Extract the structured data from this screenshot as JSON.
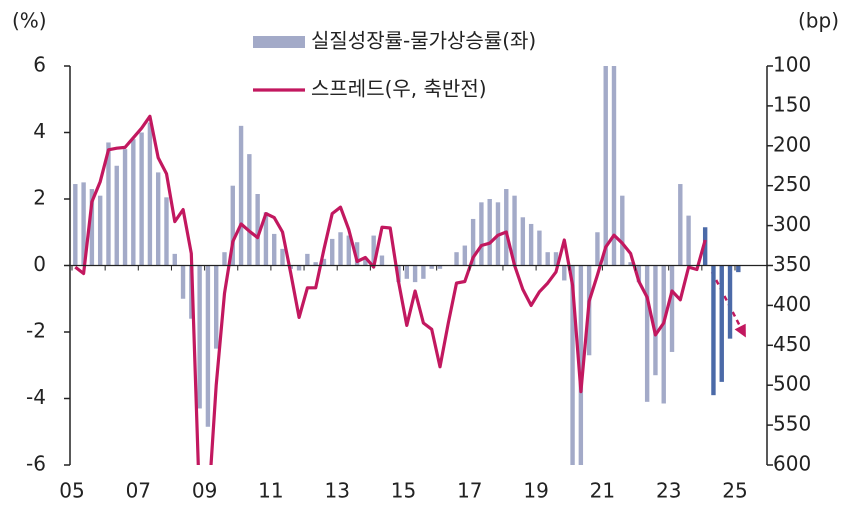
{
  "chart_data": {
    "type": "bar_line",
    "y_unit": "(%)",
    "y2_unit": "(bp)",
    "categories": [
      "05",
      null,
      null,
      null,
      null,
      null,
      null,
      null,
      "07",
      null,
      null,
      null,
      null,
      null,
      null,
      null,
      "09",
      null,
      null,
      null,
      null,
      null,
      null,
      null,
      "11",
      null,
      null,
      null,
      null,
      null,
      null,
      null,
      "13",
      null,
      null,
      null,
      null,
      null,
      null,
      null,
      "15",
      null,
      null,
      null,
      null,
      null,
      null,
      null,
      "17",
      null,
      null,
      null,
      null,
      null,
      null,
      null,
      "19",
      null,
      null,
      null,
      null,
      null,
      null,
      null,
      "21",
      null,
      null,
      null,
      null,
      null,
      null,
      null,
      "23",
      null,
      null,
      null,
      null,
      null,
      null,
      null,
      "25"
    ],
    "series": [
      {
        "name": "실질성장률-물가상승률(좌)",
        "type": "bar",
        "color": "#a3aac8",
        "highlight_color": "#4b6aa8",
        "highlight_from": 76,
        "values": [
          2.45,
          2.5,
          2.3,
          2.1,
          3.7,
          3.0,
          3.5,
          3.8,
          4.0,
          4.3,
          2.8,
          2.05,
          0.35,
          -1.0,
          -1.6,
          -4.3,
          -4.85,
          -2.5,
          0.4,
          2.4,
          4.2,
          3.35,
          2.15,
          1.6,
          0.95,
          0.5,
          -0.1,
          -0.15,
          0.35,
          0.1,
          0.2,
          0.8,
          1.0,
          0.9,
          0.7,
          0.2,
          0.9,
          0.3,
          0.0,
          -0.5,
          -0.4,
          -0.5,
          -0.4,
          -0.1,
          -0.1,
          0.0,
          0.4,
          0.6,
          1.4,
          1.9,
          2.0,
          1.9,
          2.3,
          2.1,
          1.45,
          1.25,
          1.05,
          0.4,
          0.4,
          -0.45,
          -6.3,
          -6.3,
          -2.7,
          1.0,
          6.3,
          6.3,
          2.1,
          0.1,
          -0.5,
          -4.1,
          -3.3,
          -4.15,
          -2.6,
          2.45,
          1.5,
          0.0,
          1.15,
          -3.9,
          -3.5,
          -2.2,
          -0.2
        ]
      },
      {
        "name": "스프레드(우, 축반전)",
        "type": "line",
        "axis": "y2",
        "color": "#c2185f",
        "values": [
          352,
          360,
          270,
          245,
          205,
          203,
          202,
          190,
          178,
          163,
          215,
          235,
          295,
          280,
          335,
          650,
          660,
          500,
          385,
          320,
          298,
          307,
          315,
          285,
          290,
          308,
          360,
          415,
          378,
          378,
          330,
          285,
          277,
          305,
          345,
          340,
          352,
          302,
          303,
          370,
          425,
          382,
          422,
          430,
          477,
          422,
          372,
          370,
          340,
          325,
          322,
          312,
          308,
          350,
          380,
          400,
          383,
          372,
          358,
          318,
          375,
          508,
          395,
          362,
          327,
          312,
          322,
          335,
          370,
          390,
          437,
          422,
          382,
          393,
          352,
          355,
          318,
          null,
          null,
          null,
          null
        ]
      }
    ],
    "ylim": [
      -6,
      6
    ],
    "yticks": [
      -6,
      -4,
      -2,
      0,
      2,
      4,
      6
    ],
    "y2lim": [
      600,
      100
    ],
    "y2ticks": [
      100,
      150,
      200,
      250,
      300,
      350,
      400,
      450,
      500,
      550,
      600
    ],
    "y2_inverted": true,
    "legend": "top"
  }
}
